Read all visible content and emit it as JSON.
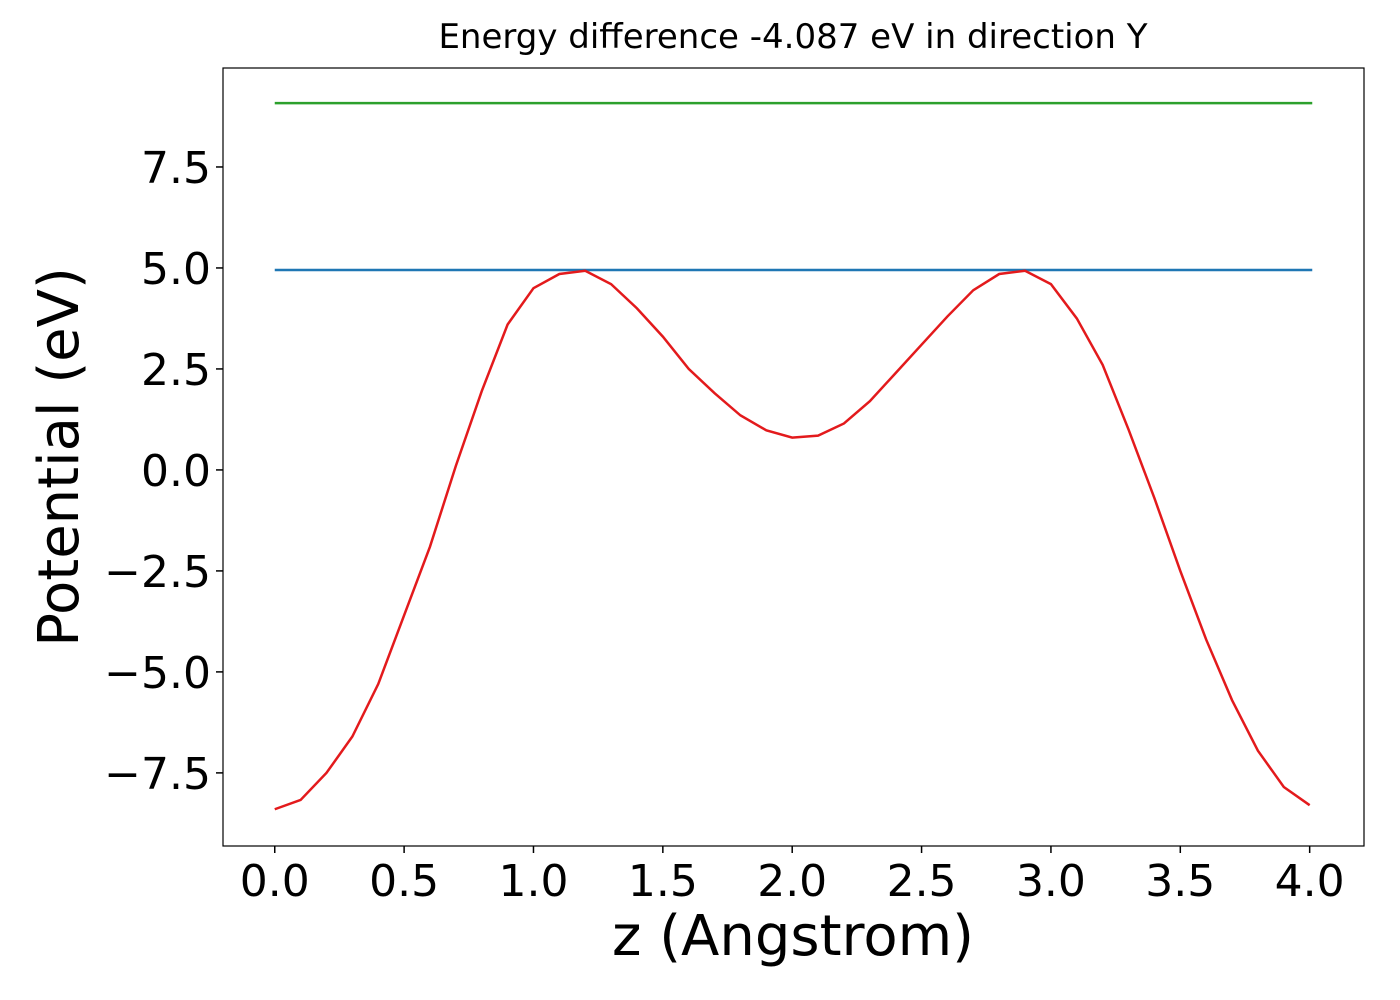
{
  "chart_data": {
    "type": "line",
    "title": "Energy difference -4.087 eV in direction Y",
    "x_label": "z (Angstrom)",
    "y_label": "Potential (eV)",
    "xlim": [
      -0.2,
      4.21
    ],
    "ylim": [
      -9.31,
      9.95
    ],
    "xticks": [
      {
        "value": 0,
        "label": "0.0"
      },
      0.5,
      {
        "value": 1,
        "label": "1.0"
      },
      1.5,
      {
        "value": 2,
        "label": "2.0"
      },
      2.5,
      {
        "value": 3,
        "label": "3.0"
      },
      3.5,
      {
        "value": 4,
        "label": "4.0"
      }
    ],
    "yticks": [
      {
        "value": -7.5,
        "label": "−7.5"
      },
      {
        "value": -5,
        "label": "−5.0"
      },
      {
        "value": -2.5,
        "label": "−2.5"
      },
      {
        "value": 0,
        "label": "0.0"
      },
      2.5,
      {
        "value": 5,
        "label": "5.0"
      },
      7.5
    ],
    "grid": false,
    "series": [
      {
        "color": "#2ca02c",
        "x": [
          0,
          4.01
        ],
        "values": [
          9.08,
          9.08
        ]
      },
      {
        "color": "#1f77b4",
        "x": [
          0,
          4.01
        ],
        "values": [
          4.95,
          4.95
        ]
      },
      {
        "color": "#e31a1c",
        "x": [
          0,
          0.1,
          0.2,
          0.3,
          0.4,
          0.5,
          0.6,
          0.7,
          0.8,
          0.9,
          1.0,
          1.1,
          1.2,
          1.3,
          1.4,
          1.5,
          1.6,
          1.7,
          1.8,
          1.9,
          2.0,
          2.1,
          2.2,
          2.3,
          2.4,
          2.5,
          2.6,
          2.7,
          2.8,
          2.9,
          3.0,
          3.1,
          3.2,
          3.3,
          3.4,
          3.5,
          3.6,
          3.7,
          3.8,
          3.9,
          4.0
        ],
        "values": [
          -8.4,
          -8.17,
          -7.5,
          -6.6,
          -5.3,
          -3.6,
          -1.9,
          0.1,
          1.95,
          3.6,
          4.5,
          4.85,
          4.93,
          4.6,
          4.0,
          3.3,
          2.5,
          1.9,
          1.35,
          0.98,
          0.8,
          0.85,
          1.15,
          1.7,
          2.4,
          3.1,
          3.8,
          4.45,
          4.85,
          4.93,
          4.6,
          3.75,
          2.6,
          1.0,
          -0.7,
          -2.5,
          -4.2,
          -5.7,
          -6.95,
          -7.85,
          -8.3
        ]
      }
    ]
  }
}
